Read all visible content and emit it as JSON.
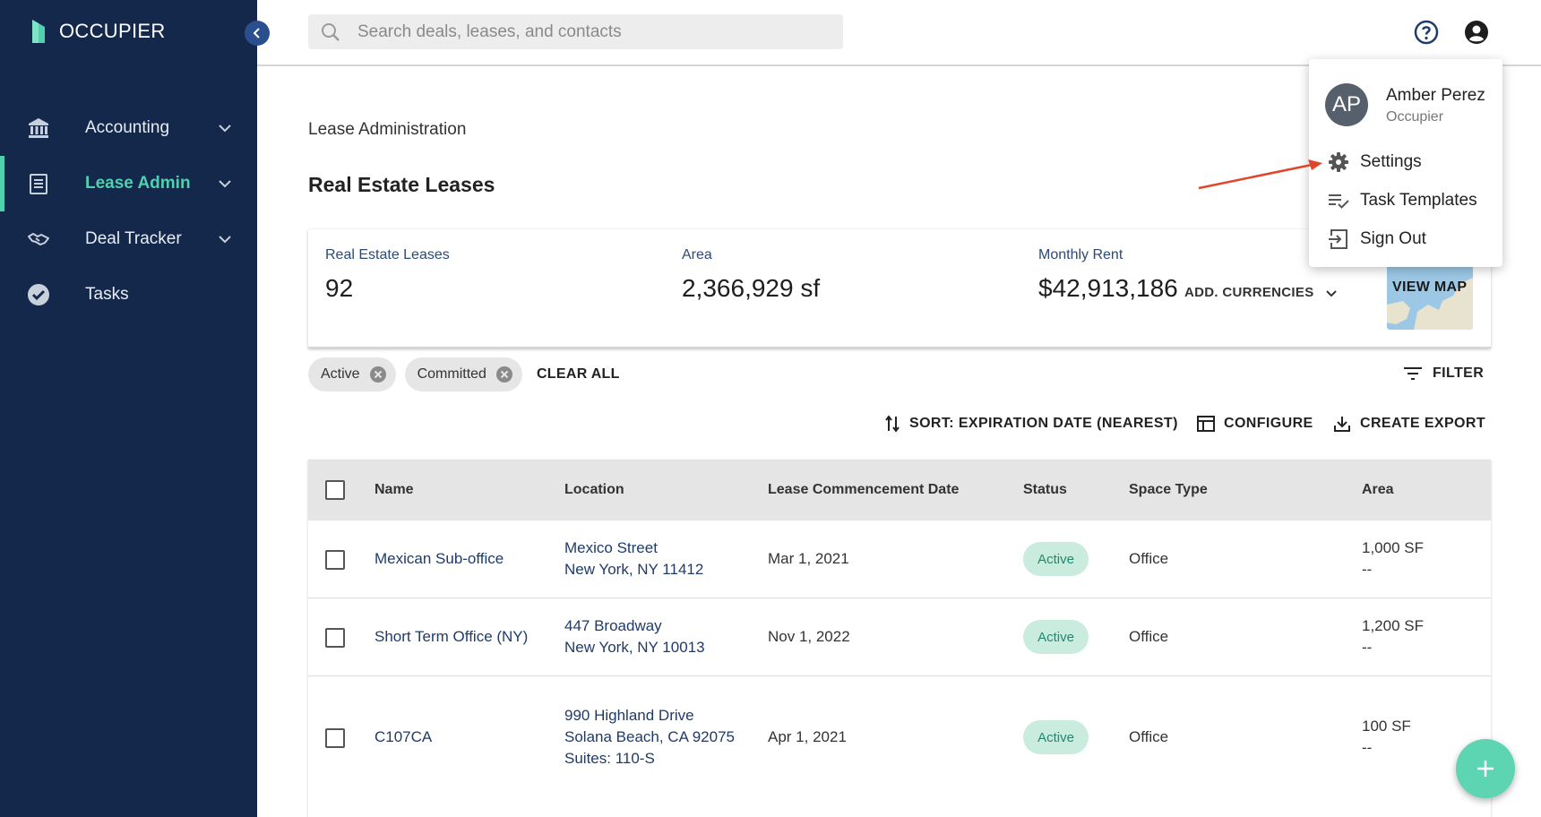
{
  "app": {
    "brand": "OCCUPIER"
  },
  "sidebar": {
    "items": [
      {
        "label": "Accounting",
        "icon": "bank-icon",
        "active": false,
        "expandable": true
      },
      {
        "label": "Lease Admin",
        "icon": "document-icon",
        "active": true,
        "expandable": true
      },
      {
        "label": "Deal Tracker",
        "icon": "handshake-icon",
        "active": false,
        "expandable": true
      },
      {
        "label": "Tasks",
        "icon": "check-circle-icon",
        "active": false,
        "expandable": false
      }
    ]
  },
  "topbar": {
    "search_placeholder": "Search deals, leases, and contacts"
  },
  "page": {
    "breadcrumb": "Lease Administration",
    "title": "Real Estate Leases"
  },
  "summary": {
    "leases_label": "Real Estate Leases",
    "leases_value": "92",
    "area_label": "Area",
    "area_value": "2,366,929 sf",
    "rent_label": "Monthly Rent",
    "rent_value": "$42,913,186",
    "currencies_label": "ADD. CURRENCIES",
    "map_label": "VIEW MAP"
  },
  "filters": {
    "chips": [
      "Active",
      "Committed"
    ],
    "clear_all": "CLEAR ALL",
    "filter_label": "FILTER"
  },
  "toolbar": {
    "sort_label": "SORT: EXPIRATION DATE (NEAREST)",
    "configure_label": "CONFIGURE",
    "export_label": "CREATE EXPORT"
  },
  "table": {
    "columns": [
      "Name",
      "Location",
      "Lease Commencement Date",
      "Status",
      "Space Type",
      "Area"
    ],
    "rows": [
      {
        "name": "Mexican Sub-office",
        "location": [
          "Mexico Street",
          "New York, NY 11412"
        ],
        "date": "Mar 1, 2021",
        "status": "Active",
        "space_type": "Office",
        "area": "1,000 SF",
        "area_sub": "--"
      },
      {
        "name": "Short Term Office (NY)",
        "location": [
          "447 Broadway",
          "New York, NY 10013"
        ],
        "date": "Nov 1, 2022",
        "status": "Active",
        "space_type": "Office",
        "area": "1,200 SF",
        "area_sub": "--"
      },
      {
        "name": "C107CA",
        "location": [
          "990 Highland Drive",
          "Solana Beach, CA 92075",
          "Suites: 110-S"
        ],
        "date": "Apr 1, 2021",
        "status": "Active",
        "space_type": "Office",
        "area": "100 SF",
        "area_sub": "--"
      }
    ]
  },
  "user_menu": {
    "initials": "AP",
    "name": "Amber Perez",
    "org": "Occupier",
    "items": [
      "Settings",
      "Task Templates",
      "Sign Out"
    ]
  },
  "colors": {
    "sidebar_bg": "#14284b",
    "accent": "#4fd1b0",
    "status_bg": "#c9ecdf",
    "status_text": "#1f8a6d",
    "fab": "#5dd4b2",
    "annotation_arrow": "#e0452c"
  }
}
